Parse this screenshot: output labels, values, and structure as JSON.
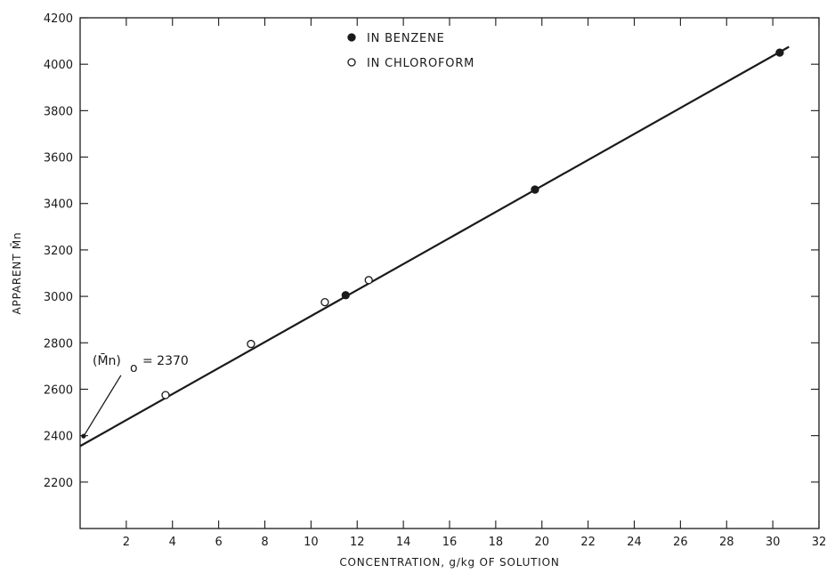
{
  "chart_data": {
    "type": "scatter",
    "title": "",
    "xlabel": "CONCENTRATION, g/kg OF SOLUTION",
    "ylabel": "APPARENT M̄n",
    "xlim": [
      0,
      32
    ],
    "ylim": [
      2000,
      4200
    ],
    "x_ticks": [
      2,
      4,
      6,
      8,
      10,
      12,
      14,
      16,
      18,
      20,
      22,
      24,
      26,
      28,
      30,
      32
    ],
    "y_ticks": [
      2200,
      2400,
      2600,
      2800,
      3000,
      3200,
      3400,
      3600,
      3800,
      4000,
      4200
    ],
    "series": [
      {
        "name": "IN BENZENE",
        "marker": "filled-circle",
        "points": [
          {
            "x": 11.5,
            "y": 3005
          },
          {
            "x": 19.7,
            "y": 3460
          },
          {
            "x": 30.3,
            "y": 4050
          }
        ]
      },
      {
        "name": "IN CHLOROFORM",
        "marker": "open-circle",
        "points": [
          {
            "x": 3.7,
            "y": 2575
          },
          {
            "x": 7.4,
            "y": 2795
          },
          {
            "x": 10.6,
            "y": 2975
          },
          {
            "x": 12.5,
            "y": 3070
          }
        ]
      }
    ],
    "fit_line": {
      "x": [
        0,
        30.7
      ],
      "y": [
        2355,
        4075
      ]
    },
    "intercept_marker": {
      "x": 0.15,
      "y": 2398
    },
    "annotation": {
      "label": "(M̄n)",
      "subscript": "o",
      "value_text": "= 2370",
      "arrow_from": {
        "x": 2.0,
        "y": 2660
      },
      "arrow_to": {
        "x": 0.2,
        "y": 2405
      }
    },
    "legend_position": "top-center",
    "grid": false
  },
  "colors": {
    "ink": "#1a1a1a",
    "background": "#ffffff"
  }
}
